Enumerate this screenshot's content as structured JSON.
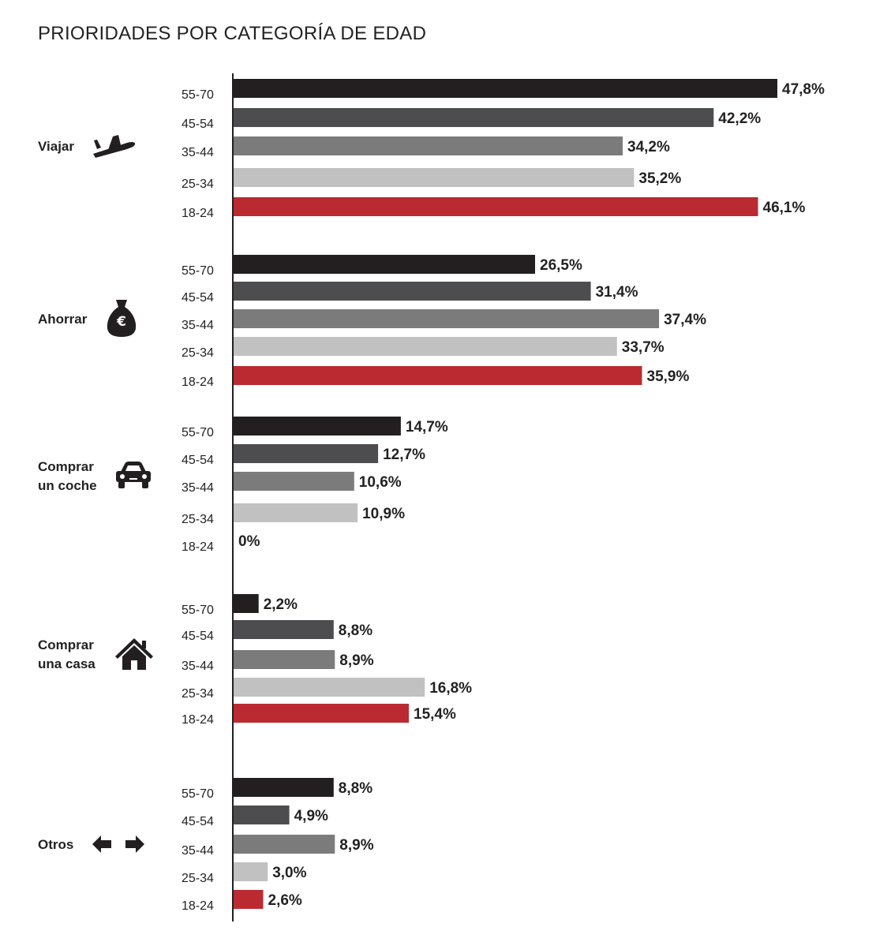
{
  "chart_data": {
    "type": "bar",
    "orientation": "horizontal",
    "title": "PRIORIDADES POR CATEGORÍA DE EDAD",
    "xlim": [
      0,
      50
    ],
    "grid": false,
    "legend": "none",
    "age_groups": [
      "55-70",
      "45-54",
      "35-44",
      "25-34",
      "18-24"
    ],
    "colors": {
      "55-70": "#231f20",
      "45-54": "#4d4d4f",
      "35-44": "#7b7b7b",
      "25-34": "#c1c1c1",
      "18-24": "#bb2a31"
    },
    "groups": [
      {
        "label_lines": [
          "Viajar"
        ],
        "icon": "airplane-icon",
        "values": [
          47.8,
          42.2,
          34.2,
          35.2,
          46.1
        ],
        "value_labels": [
          "47,8%",
          "42,2%",
          "34,2%",
          "35,2%",
          "46,1%"
        ]
      },
      {
        "label_lines": [
          "Ahorrar"
        ],
        "icon": "money-bag-euro-icon",
        "values": [
          26.5,
          31.4,
          37.4,
          33.7,
          35.9
        ],
        "value_labels": [
          "26,5%",
          "31,4%",
          "37,4%",
          "33,7%",
          "35,9%"
        ]
      },
      {
        "label_lines": [
          "Comprar",
          "un coche"
        ],
        "icon": "car-icon",
        "values": [
          14.7,
          12.7,
          10.6,
          10.9,
          0
        ],
        "value_labels": [
          "14,7%",
          "12,7%",
          "10,6%",
          "10,9%",
          "0%"
        ]
      },
      {
        "label_lines": [
          "Comprar",
          "una casa"
        ],
        "icon": "house-icon",
        "values": [
          2.2,
          8.8,
          8.9,
          16.8,
          15.4
        ],
        "value_labels": [
          "2,2%",
          "8,8%",
          "8,9%",
          "16,8%",
          "15,4%"
        ]
      },
      {
        "label_lines": [
          "Otros"
        ],
        "icon": "left-right-arrows-icon",
        "values": [
          8.8,
          4.9,
          8.9,
          3.0,
          2.6
        ],
        "value_labels": [
          "8,8%",
          "4,9%",
          "8,9%",
          "3,0%",
          "2,6%"
        ]
      }
    ]
  }
}
